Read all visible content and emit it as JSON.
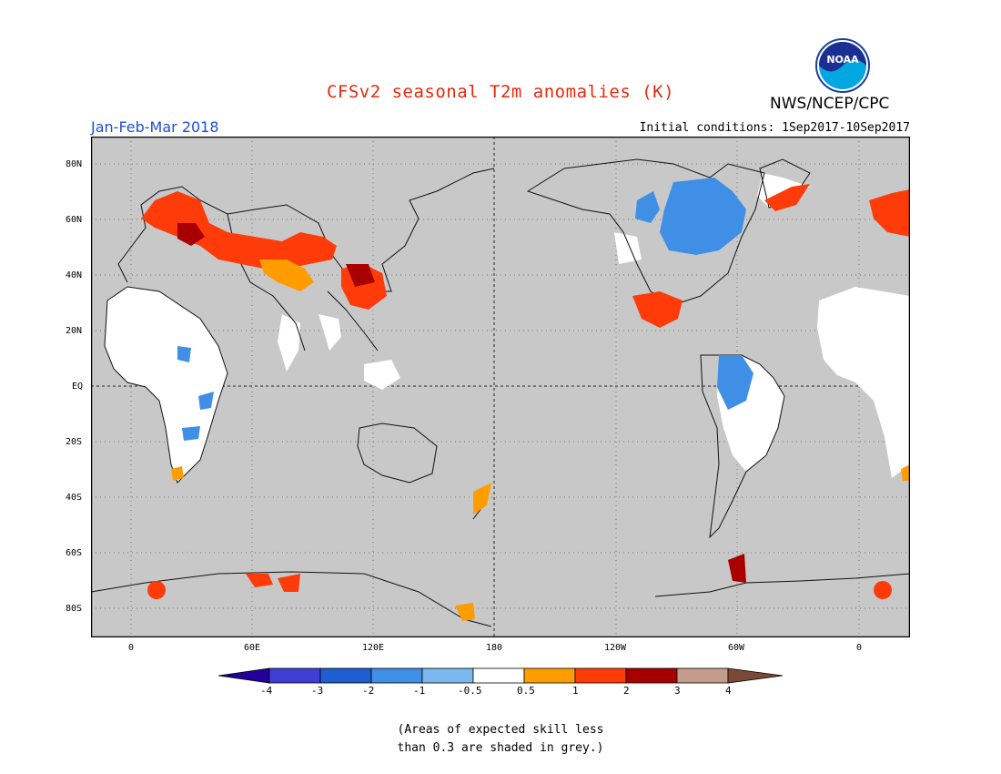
{
  "header": {
    "title": "CFSv2 seasonal T2m anomalies (K)",
    "agency": "NWS/NCEP/CPC",
    "period": "Jan-Feb-Mar 2018",
    "initial_conditions": "Initial conditions: 1Sep2017-10Sep2017",
    "logo_text": "NOAA"
  },
  "map": {
    "lat_labels": [
      "80N",
      "60N",
      "40N",
      "20N",
      "EQ",
      "20S",
      "40S",
      "60S",
      "80S"
    ],
    "lon_labels": [
      "0",
      "60E",
      "120E",
      "180",
      "120W",
      "60W",
      "0"
    ],
    "background_color": "#c8c8c8",
    "no_skill_shading": "grey"
  },
  "colorbar": {
    "labels": [
      "-4",
      "-3",
      "-2",
      "-1",
      "-0.5",
      "0.5",
      "1",
      "2",
      "3",
      "4"
    ],
    "colors": [
      "#23009b",
      "#3f3fd6",
      "#1f5ed0",
      "#3f8fe6",
      "#7ab8ee",
      "#ffffff",
      "#ff9d00",
      "#ff3b0a",
      "#a80000",
      "#c49c8c",
      "#7a4a36"
    ]
  },
  "footnote": {
    "line1": "(Areas of expected skill less",
    "line2": "than 0.3 are shaded in grey.)"
  }
}
